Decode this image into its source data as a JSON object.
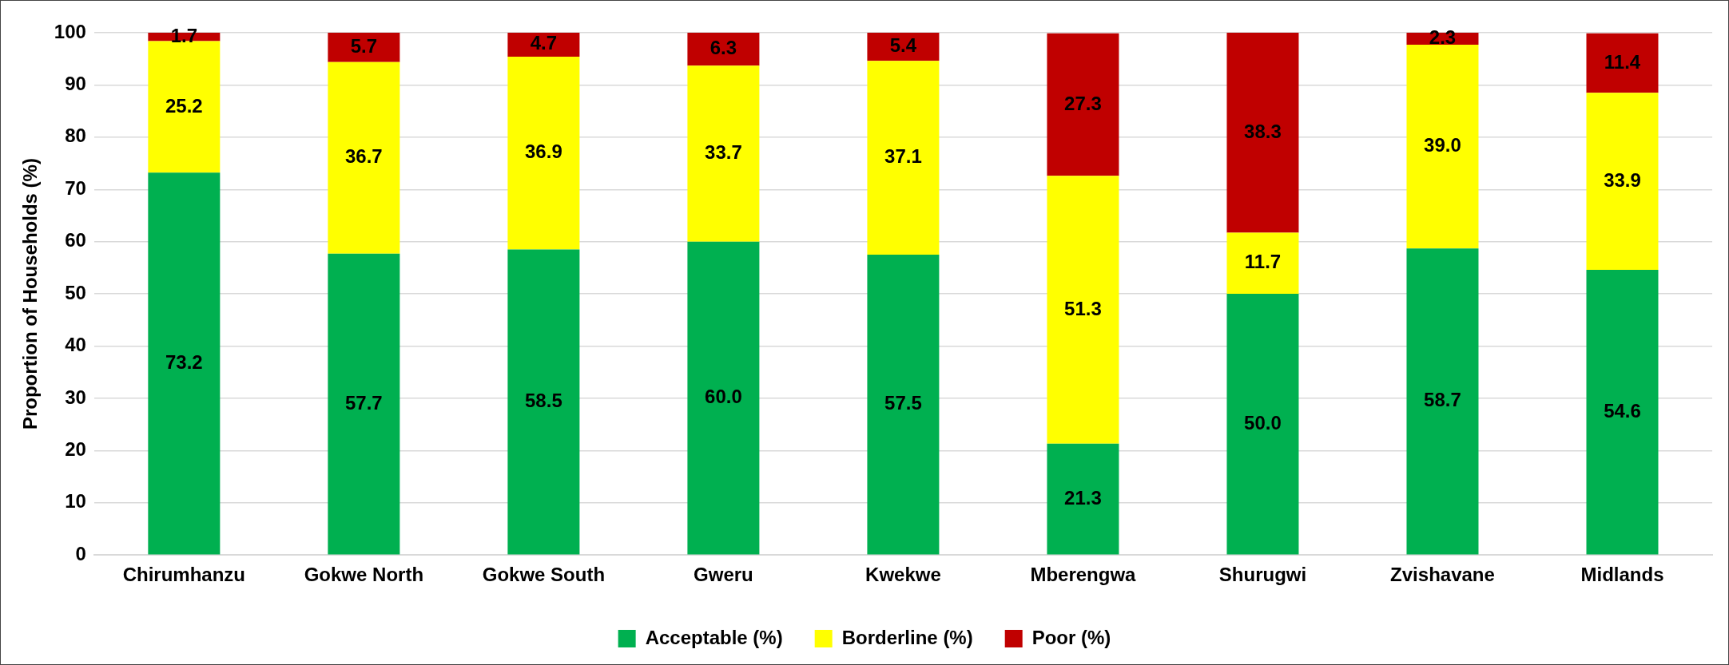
{
  "chart_data": {
    "type": "bar",
    "stacked": true,
    "ylabel": "Proportion of Households (%)",
    "categories": [
      "Chirumhanzu",
      "Gokwe North",
      "Gokwe South",
      "Gweru",
      "Kwekwe",
      "Mberengwa",
      "Shurugwi",
      "Zvishavane",
      "Midlands"
    ],
    "series": [
      {
        "name": "Acceptable (%)",
        "color": "#00b050",
        "values": [
          73.2,
          57.7,
          58.5,
          60,
          57.5,
          21.3,
          50,
          58.7,
          54.6
        ],
        "value_labels": [
          "73.2",
          "57.7",
          "58.5",
          "60.0",
          "57.5",
          "21.3",
          "50.0",
          "58.7",
          "54.6"
        ]
      },
      {
        "name": "Borderline (%)",
        "color": "#ffff00",
        "values": [
          25.2,
          36.7,
          36.9,
          33.7,
          37.1,
          51.3,
          11.7,
          39,
          33.9
        ],
        "value_labels": [
          "25.2",
          "36.7",
          "36.9",
          "33.7",
          "37.1",
          "51.3",
          "11.7",
          "39.0",
          "33.9"
        ]
      },
      {
        "name": "Poor (%)",
        "color": "#c00000",
        "values": [
          1.7,
          5.7,
          4.7,
          6.3,
          5.4,
          27.3,
          38.3,
          2.3,
          11.4
        ],
        "value_labels": [
          "1.7",
          "5.7",
          "4.7",
          "6.3",
          "5.4",
          "27.3",
          "38.3",
          "2.3",
          "11.4"
        ]
      }
    ],
    "ylim": [
      0,
      100
    ],
    "yticks": [
      0,
      10,
      20,
      30,
      40,
      50,
      60,
      70,
      80,
      90,
      100
    ],
    "grid": "y",
    "legend": "bottom"
  }
}
